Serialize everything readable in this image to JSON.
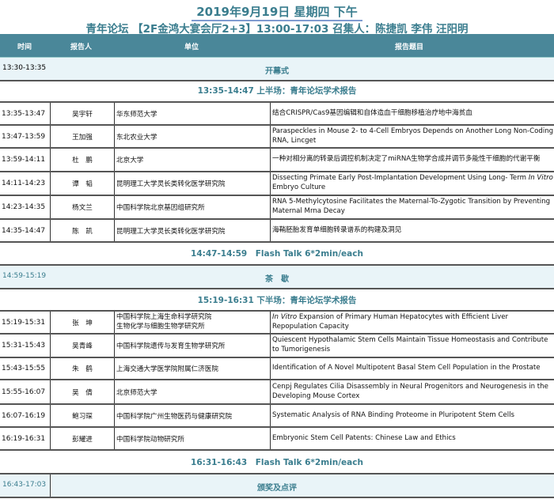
{
  "title": "2019年9月19日 星期四 下午",
  "subtitle": "青年论坛 【2F金鸿大宴会厅2+3】13:00-17:03 召集人：陈捷凯 李伟 汪阳明",
  "header": {
    "time": "时间",
    "speaker": "报告人",
    "unit": "单位",
    "topic": "报告题目"
  },
  "opening": {
    "time": "13:30-13:35",
    "label": "开幕式"
  },
  "session1": "13:35-14:47 上半场：青年论坛学术报告",
  "rows1": [
    {
      "time": "13:35-13:47",
      "speaker": "吴宇轩",
      "unit": "华东师范大学",
      "topic": "结合CRISPR/Cas9基因编辑和自体造血干细胞移植治疗地中海贫血"
    },
    {
      "time": "13:47-13:59",
      "speaker": "王加强",
      "unit": "东北农业大学",
      "topic": "Paraspeckles in Mouse 2- to 4-Cell Embryos Depends on Another Long Non-Coding RNA, Lincget"
    },
    {
      "time": "13:59-14:11",
      "speaker": "杜　鹏",
      "unit": "北京大学",
      "topic": "一种对相分离的转录后调控机制决定了miRNA生物学合成并调节多能性干细胞的代谢平衡"
    },
    {
      "time": "14:11-14:23",
      "speaker": "谭　韬",
      "unit": "昆明理工大学灵长类转化医学研究院",
      "topic": "Dissecting Primate Early Post-Implantation Development Using Long- Term ",
      "topic_italic": "In Vitro",
      "topic_end": " Embryo Culture"
    },
    {
      "time": "14:23-14:35",
      "speaker": "杨文兰",
      "unit": "中国科学院北京基因组研究所",
      "topic": "RNA 5-Methylcytosine Facilitates the Maternal-To-Zygotic Transition by Preventing Maternal Mrna Decay"
    },
    {
      "time": "14:35-14:47",
      "speaker": "陈　凯",
      "unit": "昆明理工大学灵长类转化医学研究院",
      "topic": "海鞘胚胎发育单细胞转录谱系的构建及洞见"
    }
  ],
  "flash1": "14:47-14:59　Flash Talk  6*2min/each",
  "break": {
    "time": "14:59-15:19",
    "label": "茶　歇"
  },
  "session2": "15:19-16:31 下半场：青年论坛学术报告",
  "rows2": [
    {
      "time": "15:19-15:31",
      "speaker": "张　坤",
      "unit": "中国科学院上海生命科学研究院",
      "unit2": "生物化学与细胞生物学研究所",
      "topic_italic": "In Vitro",
      "topic": " Expansion of Primary Human Hepatocytes with Efficient Liver Repopulation Capacity"
    },
    {
      "time": "15:31-15:43",
      "speaker": "吴青峰",
      "unit": "中国科学院遗传与发育生物学研究所",
      "topic": "Quiescent Hypothalamic Stem Cells Maintain Tissue Homeostasis and Contribute to Tumorigenesis"
    },
    {
      "time": "15:43-15:55",
      "speaker": "朱　鹤",
      "unit": "上海交通大学医学院附属仁济医院",
      "topic": "Identification of A Novel Multipotent Basal Stem Cell Population in the Prostate"
    },
    {
      "time": "15:55-16:07",
      "speaker": "吴　倩",
      "unit": "北京师范大学",
      "topic": "Cenpj Regulates Cilia Disassembly in Neural Progenitors and Neurogenesis in the Developing Mouse Cortex"
    },
    {
      "time": "16:07-16:19",
      "speaker": "鲍习琛",
      "unit": "中国科学院广州生物医药与健康研究院",
      "topic": "Systematic Analysis of RNA Binding Proteome in Pluripotent Stem Cells"
    },
    {
      "time": "16:19-16:31",
      "speaker": "彭耀进",
      "unit": "中国科学院动物研究所",
      "topic": "Embryonic Stem Cell Patents: Chinese Law and Ethics"
    }
  ],
  "flash2": "16:31-16:43　Flash Talk  6*2min/each",
  "closing": {
    "time": "16:43-17:03",
    "label": "颁奖及点评"
  },
  "colors": {
    "accent": "#3a7d8e",
    "header_bg": "#4a8799",
    "band_bg": "#e9f4f8"
  }
}
